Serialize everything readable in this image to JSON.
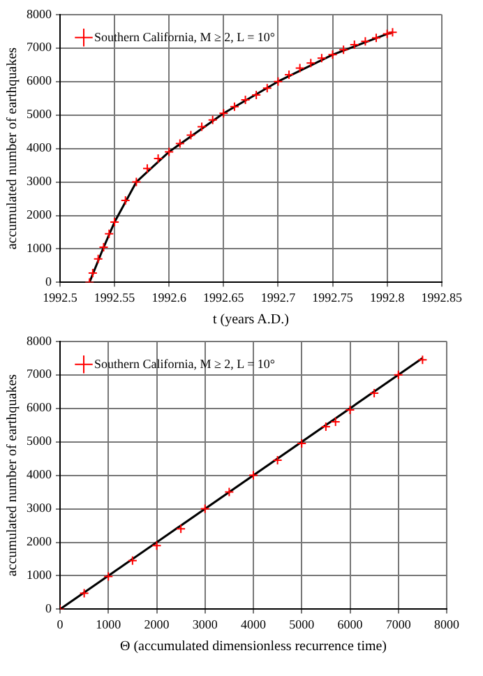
{
  "chart_data": [
    {
      "type": "scatter",
      "xlabel": "t (years A.D.)",
      "ylabel": "accumulated number of earthquakes",
      "xlim": [
        1992.5,
        1992.85
      ],
      "xticks": [
        1992.5,
        1992.55,
        1992.6,
        1992.65,
        1992.7,
        1992.75,
        1992.8,
        1992.85
      ],
      "ylim": [
        0,
        8000
      ],
      "yticks": [
        0,
        1000,
        2000,
        3000,
        4000,
        5000,
        6000,
        7000,
        8000
      ],
      "grid": true,
      "legend": "top left",
      "series": [
        {
          "marker": "cross",
          "name": "Southern California, M ≥ 2, L = 10°",
          "color": "#ff0000",
          "x": [
            1992.527,
            1992.53,
            1992.535,
            1992.54,
            1992.545,
            1992.55,
            1992.56,
            1992.57,
            1992.58,
            1992.59,
            1992.6,
            1992.61,
            1992.62,
            1992.63,
            1992.64,
            1992.65,
            1992.66,
            1992.67,
            1992.68,
            1992.69,
            1992.7,
            1992.71,
            1992.72,
            1992.73,
            1992.74,
            1992.75,
            1992.76,
            1992.77,
            1992.78,
            1992.79,
            1992.8,
            1992.805
          ],
          "values": [
            0,
            280,
            700,
            1050,
            1450,
            1800,
            2450,
            3000,
            3400,
            3700,
            3900,
            4150,
            4400,
            4650,
            4850,
            5050,
            5250,
            5450,
            5600,
            5800,
            6000,
            6200,
            6400,
            6550,
            6700,
            6800,
            6950,
            7100,
            7200,
            7300,
            7420,
            7470
          ]
        },
        {
          "type": "line",
          "marker": "none",
          "color": "#000000",
          "x": [
            1992.527,
            1992.54,
            1992.55,
            1992.57,
            1992.6,
            1992.65,
            1992.7,
            1992.75,
            1992.8,
            1992.805
          ],
          "values": [
            0,
            1050,
            1800,
            3000,
            3900,
            5050,
            6000,
            6800,
            7420,
            7470
          ]
        }
      ]
    },
    {
      "type": "scatter",
      "xlabel": "Θ (accumulated dimensionless recurrence time)",
      "ylabel": "accumulated number of earthquakes",
      "xlim": [
        0,
        8000
      ],
      "xticks": [
        0,
        1000,
        2000,
        3000,
        4000,
        5000,
        6000,
        7000,
        8000
      ],
      "ylim": [
        0,
        8000
      ],
      "yticks": [
        0,
        1000,
        2000,
        3000,
        4000,
        5000,
        6000,
        7000,
        8000
      ],
      "grid": true,
      "legend": "top left",
      "series": [
        {
          "marker": "cross",
          "name": "Southern California, M ≥ 2, L = 10°",
          "color": "#ff0000",
          "x": [
            0,
            500,
            1000,
            1500,
            2000,
            2500,
            3000,
            3500,
            4000,
            4500,
            5000,
            5500,
            5700,
            6000,
            6500,
            7000,
            7500
          ],
          "values": [
            0,
            480,
            980,
            1450,
            1900,
            2400,
            3000,
            3500,
            4000,
            4450,
            4950,
            5450,
            5600,
            5950,
            6450,
            7000,
            7450
          ]
        },
        {
          "type": "line",
          "marker": "none",
          "color": "#000000",
          "x": [
            0,
            7500
          ],
          "values": [
            0,
            7500
          ]
        }
      ]
    }
  ]
}
